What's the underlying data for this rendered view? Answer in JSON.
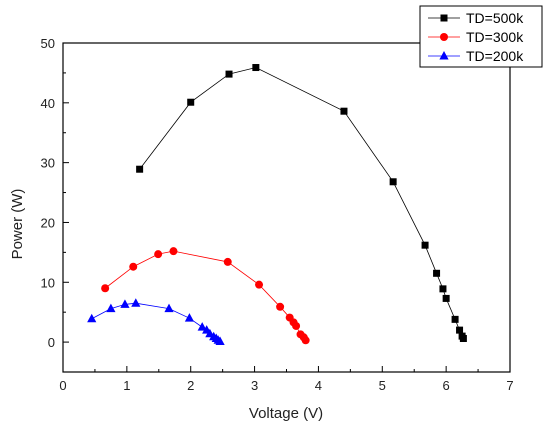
{
  "chart_data": {
    "type": "line",
    "xlabel": "Voltage (V)",
    "ylabel": "Power (W)",
    "xlim": [
      0,
      7
    ],
    "ylim": [
      -5,
      50
    ],
    "xticks": [
      0,
      1,
      2,
      3,
      4,
      5,
      6,
      7
    ],
    "yticks": [
      0,
      10,
      20,
      30,
      40,
      50
    ],
    "grid": false,
    "legend_position": "top-right",
    "series": [
      {
        "name": "TD=500k",
        "color": "#000000",
        "marker": "square",
        "points": [
          [
            1.2,
            28.9
          ],
          [
            2.0,
            40.1
          ],
          [
            2.6,
            44.8
          ],
          [
            3.02,
            45.9
          ],
          [
            4.4,
            38.6
          ],
          [
            5.17,
            26.8
          ],
          [
            5.67,
            16.2
          ],
          [
            5.85,
            11.5
          ],
          [
            5.95,
            8.9
          ],
          [
            6.0,
            7.3
          ],
          [
            6.14,
            3.8
          ],
          [
            6.21,
            2.0
          ],
          [
            6.25,
            1.0
          ],
          [
            6.27,
            0.6
          ]
        ]
      },
      {
        "name": "TD=300k",
        "color": "#ff0000",
        "marker": "circle",
        "points": [
          [
            0.66,
            9.0
          ],
          [
            1.1,
            12.6
          ],
          [
            1.49,
            14.7
          ],
          [
            1.73,
            15.2
          ],
          [
            2.58,
            13.4
          ],
          [
            3.07,
            9.6
          ],
          [
            3.4,
            5.9
          ],
          [
            3.55,
            4.1
          ],
          [
            3.61,
            3.3
          ],
          [
            3.65,
            2.7
          ],
          [
            3.72,
            1.3
          ],
          [
            3.77,
            0.8
          ],
          [
            3.8,
            0.3
          ]
        ]
      },
      {
        "name": "TD=200k",
        "color": "#0000ff",
        "marker": "triangle",
        "points": [
          [
            0.45,
            3.9
          ],
          [
            0.75,
            5.6
          ],
          [
            0.97,
            6.3
          ],
          [
            1.14,
            6.5
          ],
          [
            1.66,
            5.6
          ],
          [
            1.98,
            4.0
          ],
          [
            2.18,
            2.5
          ],
          [
            2.25,
            2.0
          ],
          [
            2.3,
            1.4
          ],
          [
            2.36,
            0.9
          ],
          [
            2.4,
            0.6
          ],
          [
            2.43,
            0.3
          ],
          [
            2.46,
            0.1
          ]
        ]
      }
    ]
  }
}
